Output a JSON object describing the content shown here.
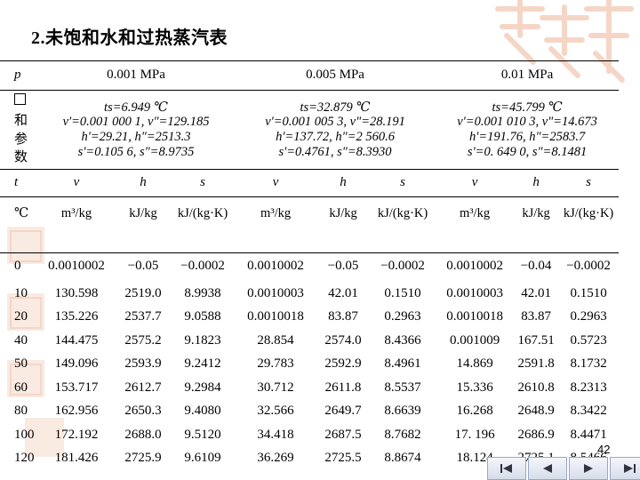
{
  "title": "2.未饱和水和过热蒸汽表",
  "header": {
    "p_label": "p",
    "pressures": [
      "0.001 MPa",
      "0.005 MPa",
      "0.01 MPa"
    ],
    "sat_label": [
      "和",
      "参",
      "数"
    ],
    "sat_blocks": [
      {
        "ts": "ts=6.949 ℃",
        "l2": "v'=0.001 000 1,  v\"=129.185",
        "l3": "h'=29.21,   h\"=2513.3",
        "l4": "s'=0.105 6,   s\"=8.9735"
      },
      {
        "ts": "ts=32.879 ℃",
        "l2": "v'=0.001 005 3,  v\"=28.191",
        "l3": "h'=137.72,   h\"=2 560.6",
        "l4": "s'=0.4761,   s\"=8.3930"
      },
      {
        "ts": "ts=45.799 ℃",
        "l2": "v'=0.001 010 3,  v\"=14.673",
        "l3": "h'=191.76,    h\"=2583.7",
        "l4": "s'=0. 649 0,    s\"=8.1481"
      }
    ],
    "col_syms": [
      "t",
      "v",
      "h",
      "s",
      "v",
      "h",
      "s",
      "v",
      "h",
      "s"
    ],
    "units": [
      "℃",
      "m³/kg",
      "kJ/kg",
      "kJ/(kg·K)",
      "m³/kg",
      "kJ/kg",
      "kJ/(kg·K)",
      "m³/kg",
      "kJ/kg",
      "kJ/(kg·K)"
    ]
  },
  "rows": [
    [
      "0",
      "0.0010002",
      "−0.05",
      "−0.0002",
      "0.0010002",
      "−0.05",
      "−0.0002",
      "0.0010002",
      "−0.04",
      "−0.0002"
    ],
    [
      "10",
      "130.598",
      "2519.0",
      "8.9938",
      "0.0010003",
      "42.01",
      "0.1510",
      "0.0010003",
      "42.01",
      "0.1510"
    ],
    [
      "20",
      "135.226",
      "2537.7",
      "9.0588",
      "0.0010018",
      "83.87",
      "0.2963",
      "0.0010018",
      "83.87",
      "0.2963"
    ],
    [
      "40",
      "144.475",
      "2575.2",
      "9.1823",
      "28.854",
      "2574.0",
      "8.4366",
      "0.001009",
      "167.51",
      "0.5723"
    ],
    [
      "50",
      "149.096",
      "2593.9",
      "9.2412",
      "29.783",
      "2592.9",
      "8.4961",
      "14.869",
      "2591.8",
      "8.1732"
    ],
    [
      "60",
      "153.717",
      "2612.7",
      "9.2984",
      "30.712",
      "2611.8",
      "8.5537",
      "15.336",
      "2610.8",
      "8.2313"
    ],
    [
      "80",
      "162.956",
      "2650.3",
      "9.4080",
      "32.566",
      "2649.7",
      "8.6639",
      "16.268",
      "2648.9",
      "8.3422"
    ],
    [
      "100",
      "172.192",
      "2688.0",
      "9.5120",
      "34.418",
      "2687.5",
      "8.7682",
      "17. 196",
      "2686.9",
      "8.4471"
    ],
    [
      "120",
      "181.426",
      "2725.9",
      "9.6109",
      "36.269",
      "2725.5",
      "8.8674",
      "18.124",
      "2725.1",
      "8.5466"
    ]
  ],
  "page_number": "42",
  "nav": [
    "first-icon",
    "prev-icon",
    "next-icon",
    "last-icon"
  ],
  "colors": {
    "decor": "#f2c9b4",
    "nav_border": "#98a8c8"
  }
}
